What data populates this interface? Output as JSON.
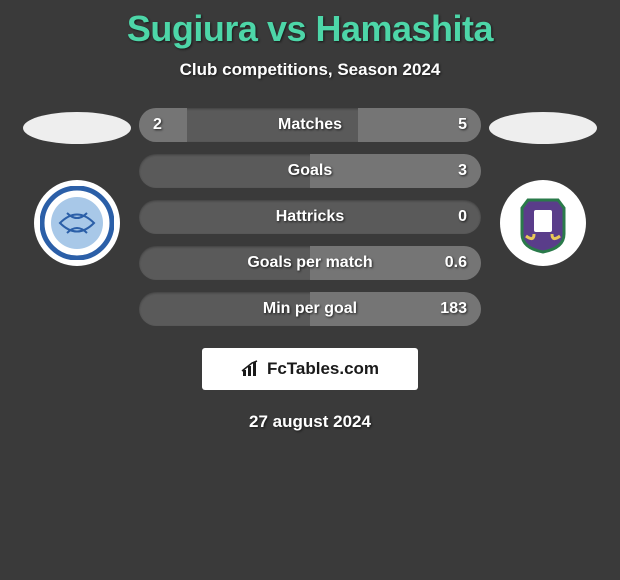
{
  "header": {
    "title": "Sugiura vs Hamashita",
    "subtitle": "Club competitions, Season 2024"
  },
  "left_team": {
    "oval_color": "#eeeeee",
    "badge_bg": "#ffffff",
    "badge_ring": "#2b5fa8",
    "badge_inner": "#a8c8e8"
  },
  "right_team": {
    "oval_color": "#eeeeee",
    "badge_bg": "#ffffff",
    "badge_shield": "#5a3d8a",
    "badge_accent": "#2a7a4a"
  },
  "stats": {
    "rows": [
      {
        "label": "Matches",
        "left": "2",
        "right": "5",
        "left_fill_pct": 14,
        "right_fill_pct": 36
      },
      {
        "label": "Goals",
        "left": "",
        "right": "3",
        "left_fill_pct": 0,
        "right_fill_pct": 50
      },
      {
        "label": "Hattricks",
        "left": "",
        "right": "0",
        "left_fill_pct": 0,
        "right_fill_pct": 0
      },
      {
        "label": "Goals per match",
        "left": "",
        "right": "0.6",
        "left_fill_pct": 0,
        "right_fill_pct": 50
      },
      {
        "label": "Min per goal",
        "left": "",
        "right": "183",
        "left_fill_pct": 0,
        "right_fill_pct": 50
      }
    ],
    "bar_bg": "#5a5a5a",
    "fill_color": "#757575",
    "text_color": "#ffffff"
  },
  "footer": {
    "brand": "FcTables.com",
    "date": "27 august 2024"
  },
  "colors": {
    "page_bg": "#3a3a3a",
    "title_color": "#4dd6a8"
  }
}
